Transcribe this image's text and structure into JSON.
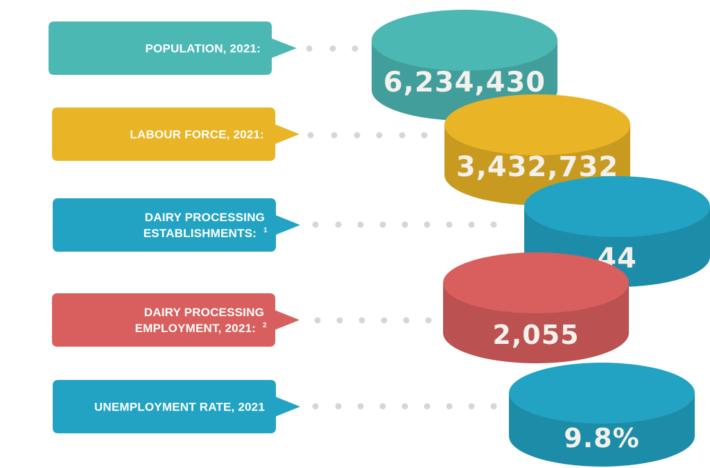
{
  "items": [
    {
      "label_lines": [
        "POPULATION, 2021:"
      ],
      "superscript": "",
      "value": "6,234,430",
      "color": "#4bb8b4"
    },
    {
      "label_lines": [
        "LABOUR FORCE, 2021:"
      ],
      "superscript": "",
      "value": "3,432,732",
      "color": "#e9b425"
    },
    {
      "label_lines": [
        "DAIRY PROCESSING",
        "ESTABLISHMENTS:"
      ],
      "superscript": "1",
      "value": "44",
      "color": "#22a3c3"
    },
    {
      "label_lines": [
        "DAIRY PROCESSING",
        "EMPLOYMENT, 2021:"
      ],
      "superscript": "2",
      "value": "2,055",
      "color": "#d95e5e"
    },
    {
      "label_lines": [
        "UNEMPLOYMENT RATE, 2021"
      ],
      "superscript": "",
      "value": "9.8%",
      "color": "#22a3c3"
    }
  ]
}
